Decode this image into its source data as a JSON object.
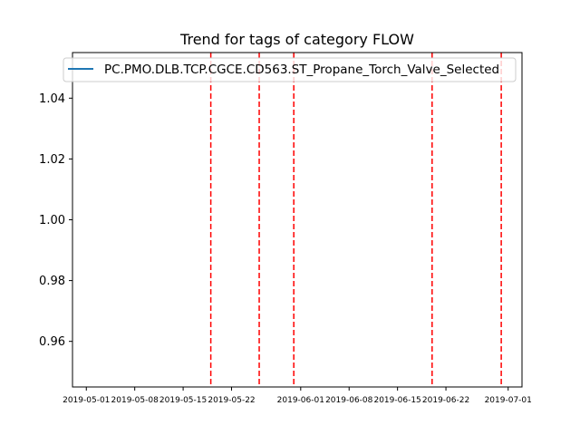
{
  "chart_data": {
    "type": "line",
    "title": "Trend for tags of category FLOW",
    "xlabel": "",
    "ylabel": "",
    "xlim": [
      "2019-04-29",
      "2019-07-03"
    ],
    "ylim": [
      0.945,
      1.055
    ],
    "x_ticks": [
      "2019-05-01",
      "2019-05-08",
      "2019-05-15",
      "2019-05-22",
      "2019-06-01",
      "2019-06-08",
      "2019-06-15",
      "2019-06-22",
      "2019-07-01"
    ],
    "y_ticks": [
      0.96,
      0.98,
      1.0,
      1.02,
      1.04
    ],
    "y_tick_labels": [
      "0.96",
      "0.98",
      "1.00",
      "1.02",
      "1.04"
    ],
    "series": [
      {
        "name": "PC.PMO.DLB.TCP.CGCE.CD563.ST_Propane_Torch_Valve_Selected",
        "color": "#1f77b4",
        "x": [],
        "y": []
      }
    ],
    "vlines": {
      "dates": [
        "2019-05-19",
        "2019-05-26",
        "2019-05-31",
        "2019-06-20",
        "2019-06-30"
      ],
      "color": "#ff0000",
      "style": "dashed"
    },
    "legend_position": "top",
    "grid": false
  }
}
